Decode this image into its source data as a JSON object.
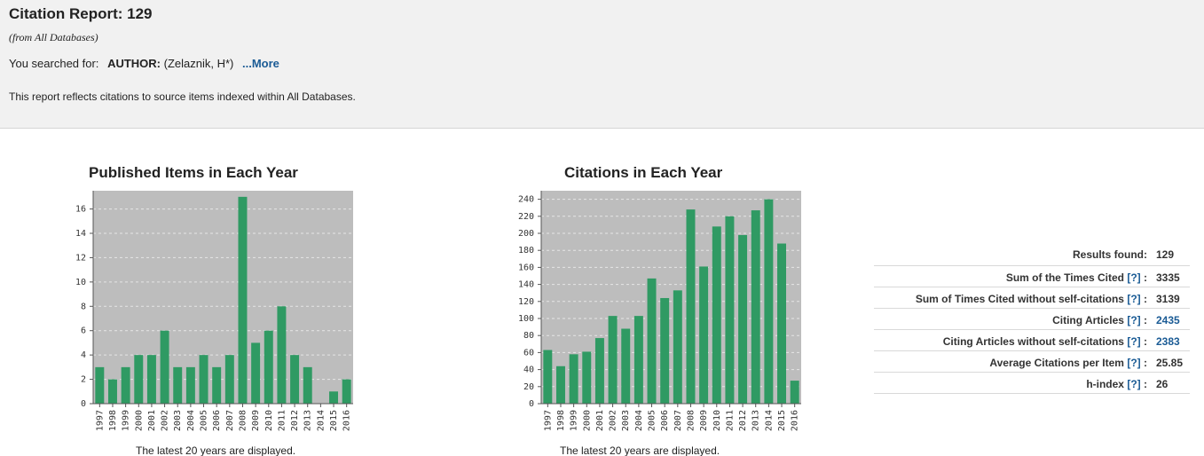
{
  "header": {
    "title": "Citation Report: 129",
    "subtitle": "(from All Databases)",
    "searched_prefix": "You searched for:",
    "searched_field": "AUTHOR:",
    "searched_value": "(Zelaznik, H*)",
    "more_link": "...More",
    "note": "This report reflects citations to source items indexed within All Databases."
  },
  "charts": {
    "published": {
      "title": "Published Items in Each Year",
      "caption": "The latest 20 years are displayed."
    },
    "citations": {
      "title": "Citations in Each Year",
      "caption": "The latest 20 years are displayed."
    }
  },
  "chart_data": [
    {
      "type": "bar",
      "title": "Published Items in Each Year",
      "categories": [
        "1997",
        "1998",
        "1999",
        "2000",
        "2001",
        "2002",
        "2003",
        "2004",
        "2005",
        "2006",
        "2007",
        "2008",
        "2009",
        "2010",
        "2011",
        "2012",
        "2013",
        "2014",
        "2015",
        "2016"
      ],
      "values": [
        3,
        2,
        3,
        4,
        4,
        6,
        3,
        3,
        4,
        3,
        4,
        17,
        5,
        6,
        8,
        4,
        3,
        0,
        1,
        2
      ],
      "yticks": [
        0,
        2,
        4,
        6,
        8,
        10,
        12,
        14,
        16
      ],
      "ylim": [
        0,
        17.5
      ],
      "grid": true,
      "bar_color": "#2f9a63",
      "plot_bg": "#bdbdbd"
    },
    {
      "type": "bar",
      "title": "Citations in Each Year",
      "categories": [
        "1997",
        "1998",
        "1999",
        "2000",
        "2001",
        "2002",
        "2003",
        "2004",
        "2005",
        "2006",
        "2007",
        "2008",
        "2009",
        "2010",
        "2011",
        "2012",
        "2013",
        "2014",
        "2015",
        "2016"
      ],
      "values": [
        63,
        44,
        58,
        61,
        77,
        103,
        88,
        103,
        147,
        124,
        133,
        228,
        161,
        208,
        220,
        198,
        227,
        240,
        188,
        27
      ],
      "yticks": [
        0,
        20,
        40,
        60,
        80,
        100,
        120,
        140,
        160,
        180,
        200,
        220,
        240
      ],
      "ylim": [
        0,
        250
      ],
      "grid": true,
      "bar_color": "#2f9a63",
      "plot_bg": "#bdbdbd"
    }
  ],
  "stats": {
    "help": "[?]",
    "rows": [
      {
        "label": "Results found:",
        "value": "129",
        "has_help": false,
        "is_link": false
      },
      {
        "label": "Sum of the Times Cited",
        "value": "3335",
        "has_help": true,
        "is_link": false
      },
      {
        "label": "Sum of Times Cited without self-citations",
        "value": "3139",
        "has_help": true,
        "is_link": false
      },
      {
        "label": "Citing Articles",
        "value": "2435",
        "has_help": true,
        "is_link": true
      },
      {
        "label": "Citing Articles without self-citations",
        "value": "2383",
        "has_help": true,
        "is_link": true
      },
      {
        "label": "Average Citations per Item",
        "value": "25.85",
        "has_help": true,
        "is_link": false
      },
      {
        "label": "h-index",
        "value": "26",
        "has_help": true,
        "is_link": false
      }
    ]
  }
}
